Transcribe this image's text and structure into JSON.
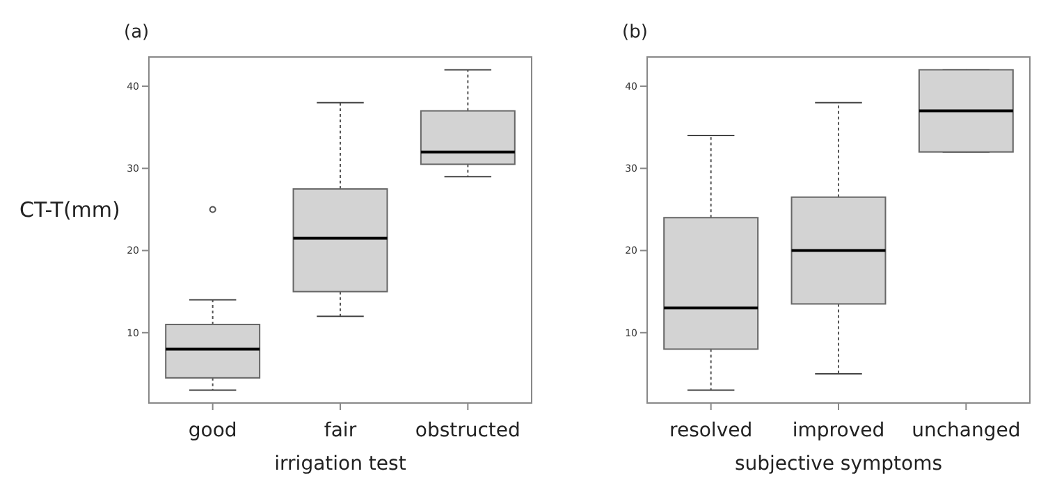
{
  "chart_data": [
    {
      "type": "box",
      "title": "(a)",
      "xlabel": "irrigation test",
      "ylabel": "CT-T(mm)",
      "categories": [
        "good",
        "fair",
        "obstructed"
      ],
      "color": "#d3d3d3",
      "ylim": [
        1.44,
        43.56
      ],
      "yticks": [
        10,
        20,
        30,
        40
      ],
      "boxes": [
        {
          "low": 3,
          "q1": 4.5,
          "median": 8,
          "q3": 11,
          "high": 14,
          "outliers": [
            25
          ]
        },
        {
          "low": 12,
          "q1": 15,
          "median": 21.5,
          "q3": 27.5,
          "high": 38
        },
        {
          "low": 29,
          "q1": 30.5,
          "median": 32,
          "q3": 37,
          "high": 42
        }
      ]
    },
    {
      "type": "box",
      "title": "(b)",
      "xlabel": "subjective symptoms",
      "categories": [
        "resolved",
        "improved",
        "unchanged"
      ],
      "color": "#d3d3d3",
      "ylim": [
        1.44,
        43.56
      ],
      "yticks": [
        10,
        20,
        30,
        40
      ],
      "boxes": [
        {
          "low": 3,
          "q1": 8,
          "median": 13,
          "q3": 24,
          "high": 34
        },
        {
          "low": 5,
          "q1": 13.5,
          "median": 20,
          "q3": 26.5,
          "high": 38
        },
        {
          "low": 32,
          "q1": 32,
          "median": 37,
          "q3": 42,
          "high": 42
        }
      ]
    }
  ]
}
